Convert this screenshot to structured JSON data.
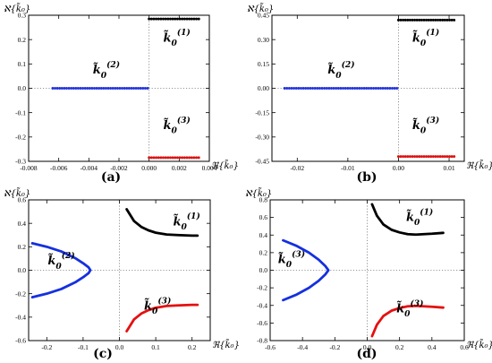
{
  "chart_data": [
    {
      "type": "scatter",
      "panel_label": "(a)",
      "ylabel": "ℵ{k̃₀}",
      "xlabel": "ℜ{k̃₀}",
      "xlim": [
        -0.008,
        0.004
      ],
      "ylim": [
        -0.3,
        0.3
      ],
      "xticks": [
        "-0.008",
        "-0.006",
        "-0.004",
        "-0.002",
        "0.000",
        "0.002",
        "0.004"
      ],
      "yticks": [
        "-0.3",
        "-0.2",
        "-0.1",
        "0.0",
        "0.1",
        "0.2",
        "0.3"
      ],
      "grid": false,
      "series": [
        {
          "name": "k̃₀(1)",
          "color": "#000000",
          "x_range": [
            0.0,
            0.0033
          ],
          "y": 0.285
        },
        {
          "name": "k̃₀(2)",
          "color": "#2233dd",
          "x_range": [
            -0.0064,
            -0.0001
          ],
          "y": 0.0
        },
        {
          "name": "k̃₀(3)",
          "color": "#e01010",
          "x_range": [
            0.0,
            0.0033
          ],
          "y": -0.285
        }
      ]
    },
    {
      "type": "scatter",
      "panel_label": "(b)",
      "ylabel": "ℵ{k̃₀}",
      "xlabel": "ℜ{k̃₀}",
      "xlim": [
        -0.025,
        0.013
      ],
      "ylim": [
        -0.45,
        0.45
      ],
      "xticks": [
        "-0.02",
        "-0.01",
        "0.00",
        "0.01"
      ],
      "yticks": [
        "-0.45",
        "-0.30",
        "-0.15",
        "0.00",
        "0.15",
        "0.30",
        "0.45"
      ],
      "grid": false,
      "series": [
        {
          "name": "k̃₀(1)",
          "color": "#000000",
          "x_range": [
            0.0,
            0.011
          ],
          "y": 0.42
        },
        {
          "name": "k̃₀(2)",
          "color": "#2233dd",
          "x_range": [
            -0.0225,
            -0.0003
          ],
          "y": 0.0
        },
        {
          "name": "k̃₀(3)",
          "color": "#e01010",
          "x_range": [
            0.0,
            0.011
          ],
          "y": -0.42
        }
      ]
    },
    {
      "type": "line",
      "panel_label": "(c)",
      "ylabel": "ℵ{k̃₀}",
      "xlabel": "ℜ{k̃₀}",
      "xlim": [
        -0.25,
        0.25
      ],
      "ylim": [
        -0.6,
        0.6
      ],
      "xticks": [
        "-0.2",
        "-0.1",
        "0.0",
        "0.1",
        "0.2"
      ],
      "yticks": [
        "-0.6",
        "-0.4",
        "-0.2",
        "0.0",
        "0.2",
        "0.4",
        "0.6"
      ],
      "grid": false,
      "series": [
        {
          "name": "k̃₀(1)",
          "color": "#000000",
          "x": [
            0.02,
            0.04,
            0.06,
            0.08,
            0.1,
            0.13,
            0.16,
            0.2,
            0.215
          ],
          "y": [
            0.52,
            0.42,
            0.37,
            0.34,
            0.32,
            0.305,
            0.3,
            0.295,
            0.295
          ]
        },
        {
          "name": "k̃₀(2)",
          "color": "#1530e0",
          "x": [
            -0.24,
            -0.2,
            -0.16,
            -0.12,
            -0.1,
            -0.085,
            -0.08,
            -0.085,
            -0.1,
            -0.12,
            -0.16,
            -0.2,
            -0.24
          ],
          "y": [
            -0.23,
            -0.2,
            -0.16,
            -0.1,
            -0.06,
            -0.025,
            0.0,
            0.025,
            0.06,
            0.1,
            0.16,
            0.2,
            0.23
          ]
        },
        {
          "name": "k̃₀(3)",
          "color": "#e51010",
          "x": [
            0.02,
            0.04,
            0.06,
            0.08,
            0.1,
            0.13,
            0.16,
            0.2,
            0.215
          ],
          "y": [
            -0.52,
            -0.42,
            -0.37,
            -0.34,
            -0.32,
            -0.305,
            -0.3,
            -0.295,
            -0.295
          ]
        }
      ]
    },
    {
      "type": "line",
      "panel_label": "(d)",
      "ylabel": "ℵ{k̃₀}",
      "xlabel": "ℜ{k̃₀}",
      "xlim": [
        -0.6,
        0.6
      ],
      "ylim": [
        -0.8,
        0.8
      ],
      "xticks": [
        "-0.6",
        "-0.4",
        "-0.2",
        "0.0",
        "0.2",
        "0.4",
        "0.6"
      ],
      "yticks": [
        "-0.8",
        "-0.6",
        "-0.4",
        "-0.2",
        "0.0",
        "0.2",
        "0.4",
        "0.6",
        "0.8"
      ],
      "grid": false,
      "series": [
        {
          "name": "k̃₀(1)",
          "color": "#000000",
          "x": [
            0.03,
            0.06,
            0.1,
            0.15,
            0.2,
            0.25,
            0.3,
            0.35,
            0.4,
            0.47
          ],
          "y": [
            0.75,
            0.62,
            0.52,
            0.46,
            0.43,
            0.41,
            0.405,
            0.41,
            0.415,
            0.425
          ]
        },
        {
          "name": "k̃₀(3)",
          "color": "#1530e0",
          "x": [
            -0.52,
            -0.44,
            -0.36,
            -0.3,
            -0.26,
            -0.24,
            -0.26,
            -0.3,
            -0.36,
            -0.44,
            -0.52
          ],
          "y": [
            -0.34,
            -0.28,
            -0.2,
            -0.12,
            -0.05,
            0.0,
            0.05,
            0.12,
            0.2,
            0.28,
            0.34
          ]
        },
        {
          "name": "k̃₀(3)",
          "color": "#e51010",
          "x": [
            0.03,
            0.06,
            0.1,
            0.15,
            0.2,
            0.25,
            0.3,
            0.35,
            0.4,
            0.47
          ],
          "y": [
            -0.75,
            -0.62,
            -0.52,
            -0.46,
            -0.43,
            -0.41,
            -0.405,
            -0.41,
            -0.415,
            -0.425
          ]
        }
      ]
    }
  ]
}
